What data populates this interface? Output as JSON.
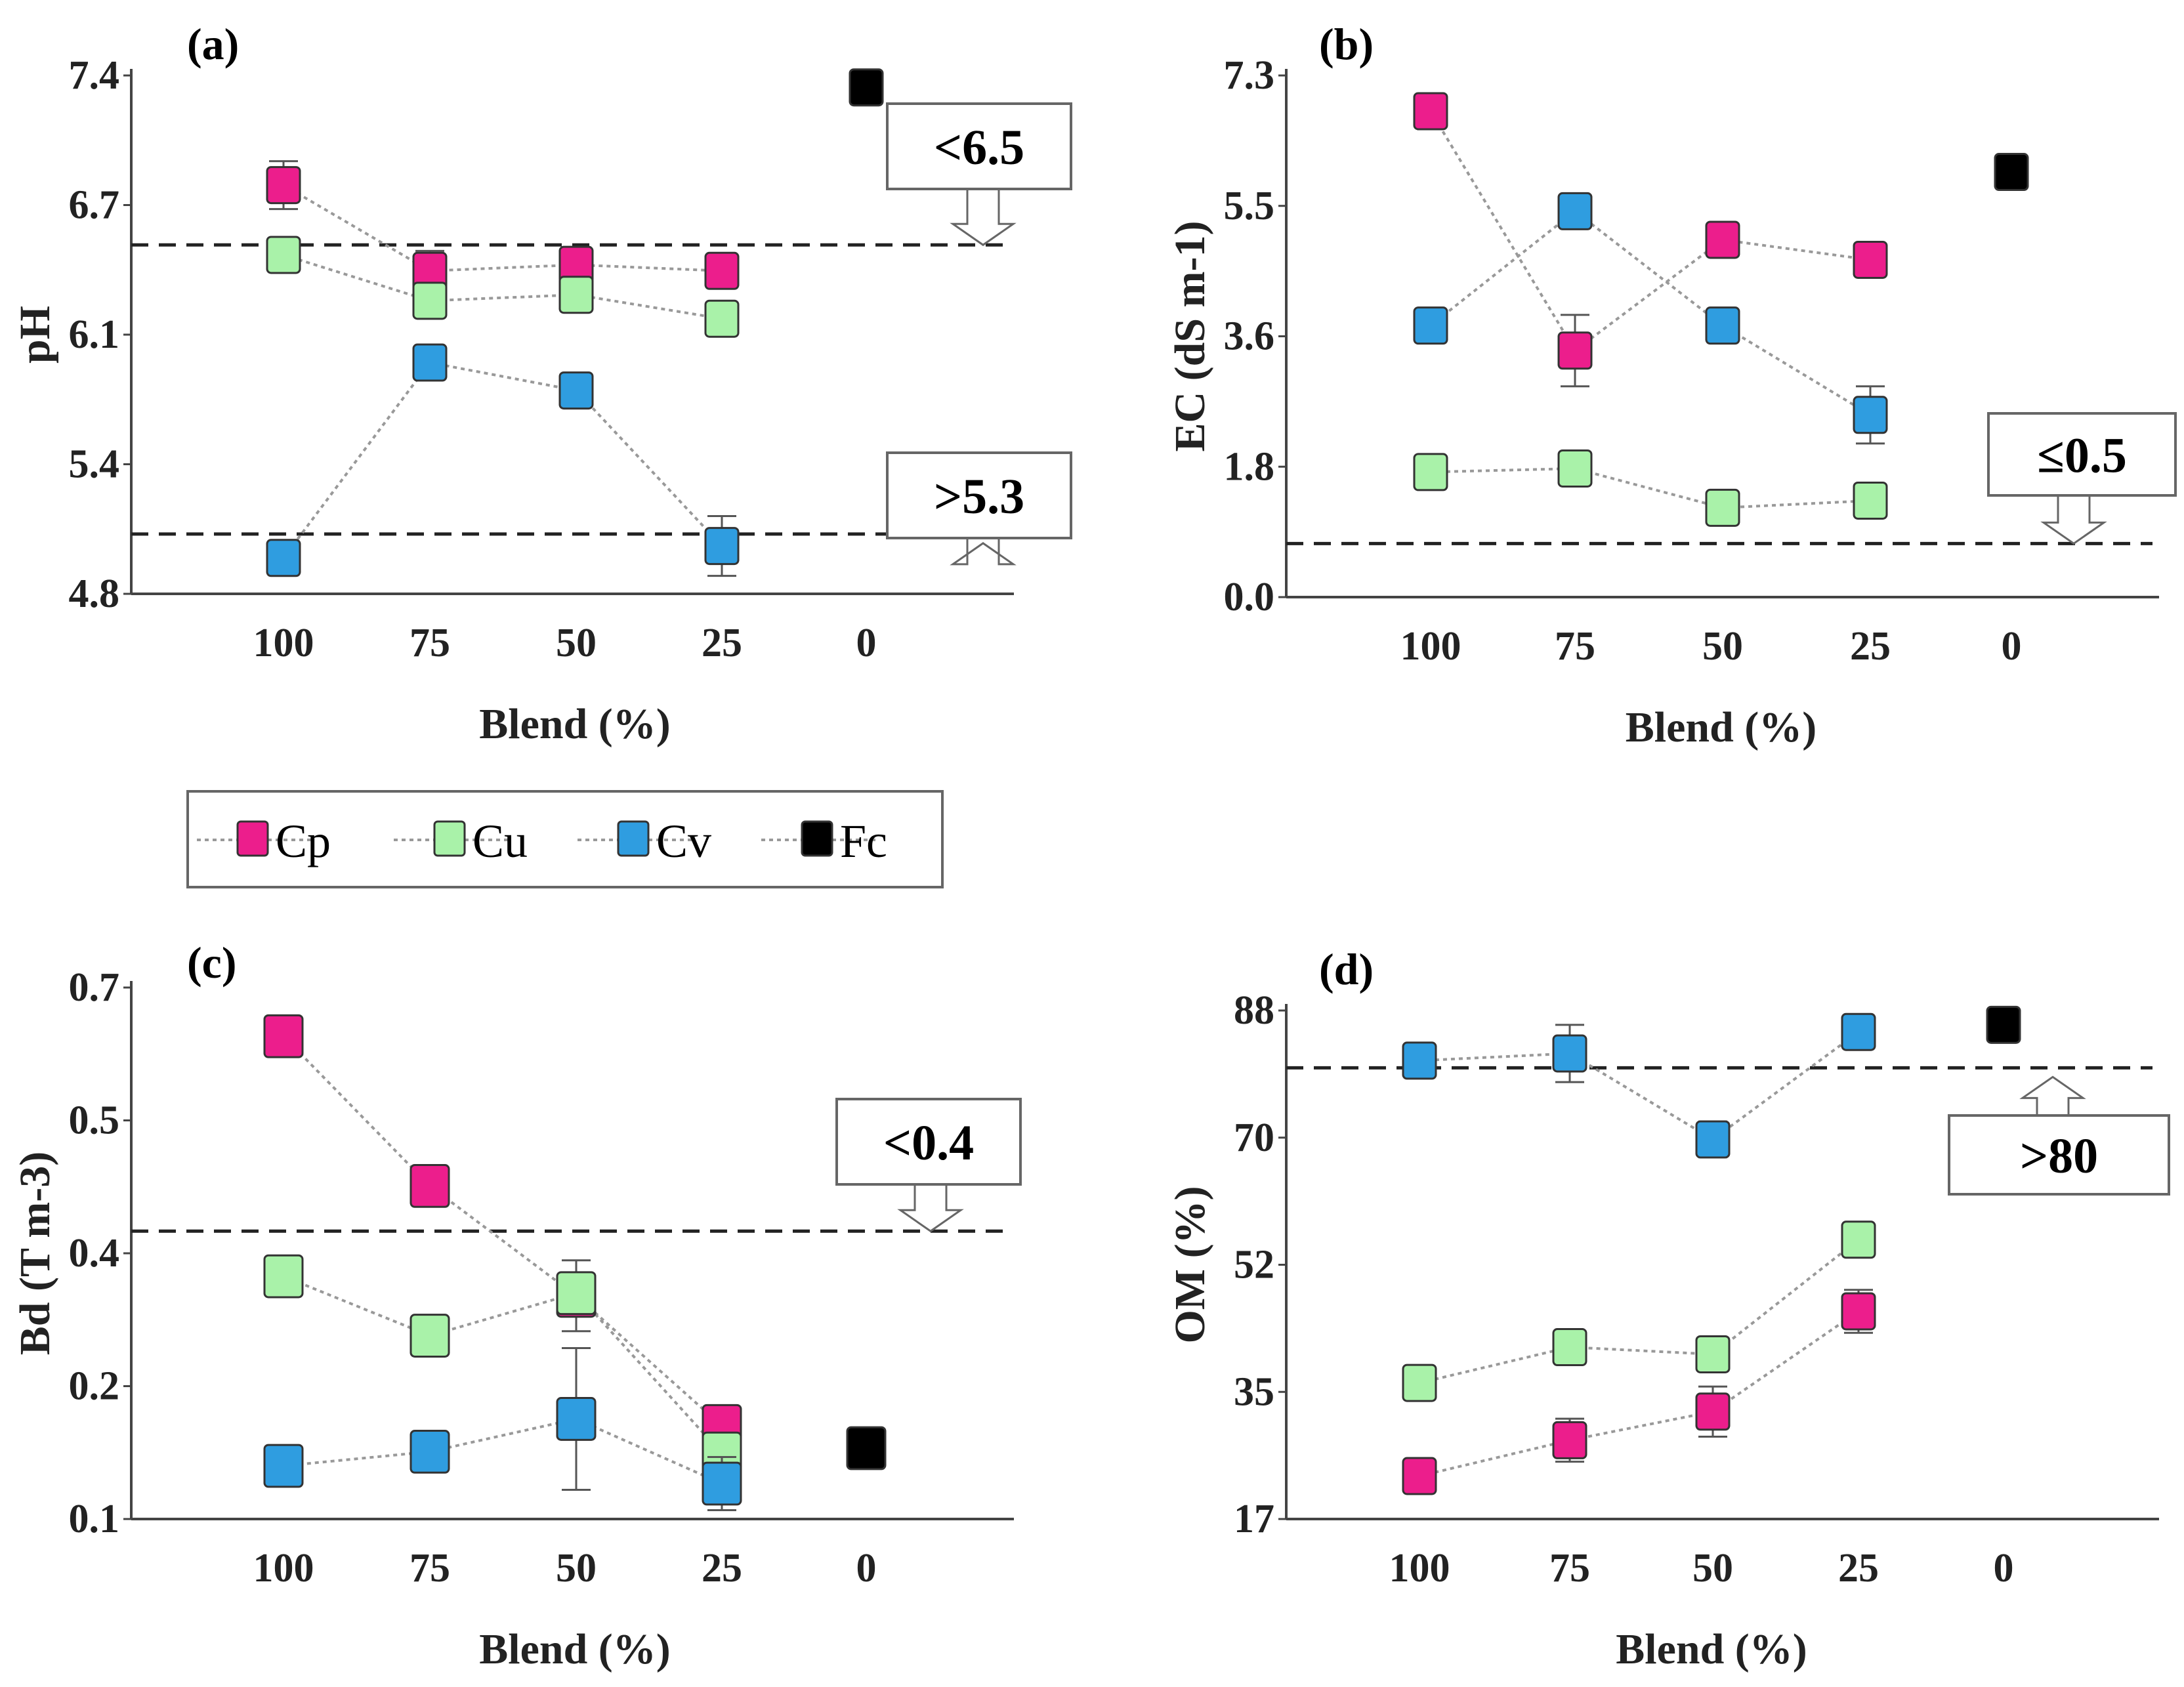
{
  "chart_data": [
    {
      "panel": "(a)",
      "type": "line",
      "ylabel": "pH",
      "xlabel": "Blend (%)",
      "categories": [
        "100",
        "75",
        "50",
        "25",
        "0"
      ],
      "yticks": [
        "7.4",
        "6.7",
        "6.1",
        "5.4",
        "4.8"
      ],
      "ylim": [
        4.8,
        7.4
      ],
      "series": [
        {
          "name": "Cp",
          "values": [
            6.85,
            6.42,
            6.45,
            6.42,
            null
          ],
          "errors": [
            0.12,
            0.1,
            0.08,
            0.06,
            null
          ]
        },
        {
          "name": "Cu",
          "values": [
            6.5,
            6.27,
            6.3,
            6.18,
            null
          ],
          "errors": [
            0.05,
            0.05,
            0.05,
            0.05,
            null
          ]
        },
        {
          "name": "Cv",
          "values": [
            4.98,
            5.96,
            5.82,
            5.04,
            null
          ],
          "errors": [
            0.03,
            0.05,
            0.04,
            0.15,
            null
          ]
        },
        {
          "name": "Fc",
          "values": [
            null,
            null,
            null,
            null,
            7.34
          ],
          "errors": [
            null,
            null,
            null,
            null,
            0
          ]
        }
      ],
      "thresholds": [
        {
          "label": "<6.5",
          "value": 6.55
        },
        {
          "label": ">5.3",
          "value": 5.1
        }
      ]
    },
    {
      "panel": "(b)",
      "type": "line",
      "ylabel": "EC (dS m-1)",
      "xlabel": "Blend (%)",
      "categories": [
        "100",
        "75",
        "50",
        "25",
        "0"
      ],
      "yticks": [
        "7.3",
        "5.5",
        "3.6",
        "1.8",
        "0.0"
      ],
      "ylim": [
        0.0,
        7.3
      ],
      "series": [
        {
          "name": "Cp",
          "values": [
            6.8,
            3.45,
            5.0,
            4.72,
            null
          ],
          "errors": [
            0.1,
            0.5,
            0.1,
            0.1,
            null
          ]
        },
        {
          "name": "Cu",
          "values": [
            1.75,
            1.8,
            1.25,
            1.35,
            null
          ],
          "errors": [
            0.1,
            0.15,
            0.1,
            0.1,
            null
          ]
        },
        {
          "name": "Cv",
          "values": [
            3.8,
            5.4,
            3.8,
            2.55,
            null
          ],
          "errors": [
            0.1,
            0.2,
            0.1,
            0.4,
            null
          ]
        },
        {
          "name": "Fc",
          "values": [
            null,
            null,
            null,
            null,
            5.95
          ],
          "errors": [
            null,
            null,
            null,
            null,
            0.15
          ]
        }
      ],
      "thresholds": [
        {
          "label": "≤0.5",
          "value": 0.75
        }
      ]
    },
    {
      "panel": "(c)",
      "type": "line",
      "ylabel": "Bd (T m-3)",
      "xlabel": "Blend (%)",
      "categories": [
        "100",
        "75",
        "50",
        "25",
        "0"
      ],
      "yticks": [
        "0.7",
        "0.5",
        "0.4",
        "0.2",
        "0.1"
      ],
      "ylim": [
        0.1,
        0.7
      ],
      "series": [
        {
          "name": "Cp",
          "values": [
            0.645,
            0.476,
            0.352,
            0.205,
            null
          ],
          "errors": [
            0.01,
            0.01,
            0.04,
            0.02,
            null
          ]
        },
        {
          "name": "Cu",
          "values": [
            0.374,
            0.307,
            0.355,
            0.174,
            null
          ],
          "errors": [
            0.01,
            0.01,
            0.01,
            0.02,
            null
          ]
        },
        {
          "name": "Cv",
          "values": [
            0.16,
            0.176,
            0.213,
            0.14,
            null
          ],
          "errors": [
            0.01,
            0.02,
            0.08,
            0.03,
            null
          ]
        },
        {
          "name": "Fc",
          "values": [
            null,
            null,
            null,
            null,
            0.18
          ],
          "errors": [
            null,
            null,
            null,
            null,
            0
          ]
        }
      ],
      "thresholds": [
        {
          "label": "<0.4",
          "value": 0.425
        }
      ]
    },
    {
      "panel": "(d)",
      "type": "line",
      "ylabel": "OM (%)",
      "xlabel": "Blend (%)",
      "categories": [
        "100",
        "75",
        "50",
        "25",
        "0"
      ],
      "yticks": [
        "88",
        "70",
        "52",
        "35",
        "17"
      ],
      "ylim": [
        17,
        88
      ],
      "series": [
        {
          "name": "Cp",
          "values": [
            23,
            28,
            32,
            46,
            null
          ],
          "errors": [
            0.5,
            3,
            3.5,
            3,
            null
          ]
        },
        {
          "name": "Cu",
          "values": [
            36,
            41,
            40,
            56,
            null
          ],
          "errors": [
            0.5,
            0.5,
            0.5,
            2,
            null
          ]
        },
        {
          "name": "Cv",
          "values": [
            81,
            82,
            70,
            85,
            null
          ],
          "errors": [
            0.5,
            4,
            2.5,
            0.5,
            null
          ]
        },
        {
          "name": "Fc",
          "values": [
            null,
            null,
            null,
            null,
            86
          ],
          "errors": [
            null,
            null,
            null,
            null,
            0
          ]
        }
      ],
      "thresholds": [
        {
          "label": ">80",
          "value": 80
        }
      ]
    }
  ],
  "legend": [
    {
      "name": "Cp",
      "color": "#ec1e8c"
    },
    {
      "name": "Cu",
      "color": "#a9f2a9"
    },
    {
      "name": "Cv",
      "color": "#2f9de0"
    },
    {
      "name": "Fc",
      "color": "#000000"
    }
  ]
}
